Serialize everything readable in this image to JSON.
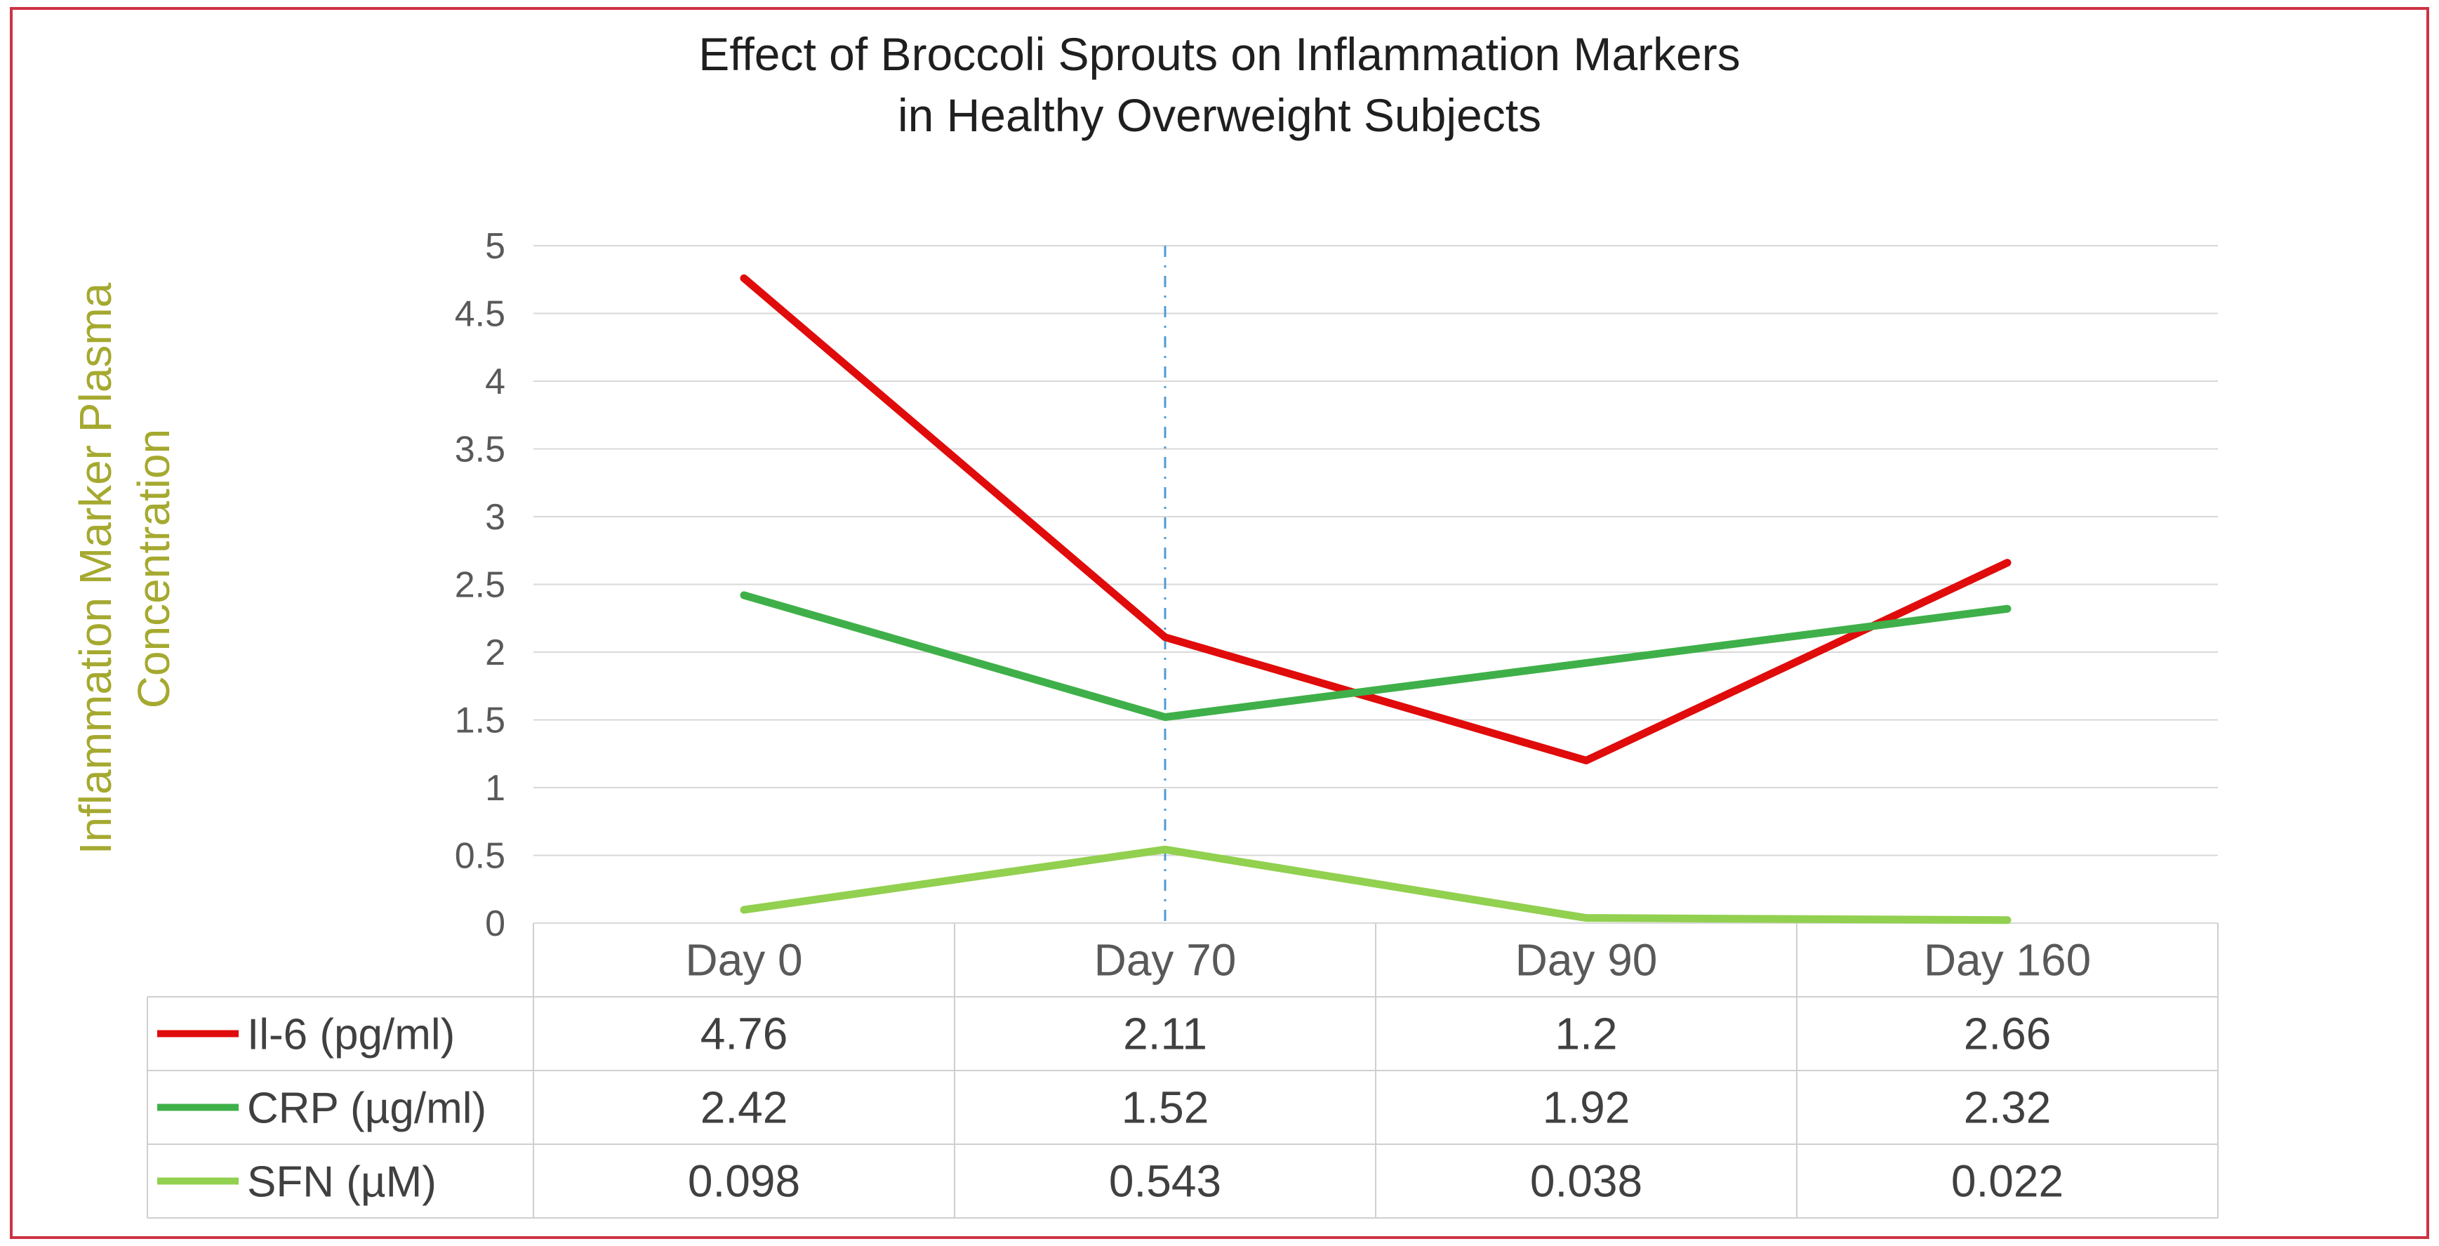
{
  "frame": {
    "border_color": "#cc3344",
    "background": "#ffffff"
  },
  "title": {
    "line1": "Effect of Broccoli Sprouts on Inflammation Markers",
    "line2": "in Healthy Overweight Subjects"
  },
  "y_axis": {
    "label_line1": "Inflammation Marker Plasma",
    "label_line2": "Concentration",
    "label_color": "#a5a92f"
  },
  "chart_data": {
    "type": "line",
    "title": "Effect of Broccoli Sprouts on Inflammation Markers in Healthy Overweight Subjects",
    "ylabel": "Inflammation Marker Plasma Concentration",
    "xlabel": "",
    "categories": [
      "Day 0",
      "Day 70",
      "Day 90",
      "Day 160"
    ],
    "series": [
      {
        "name": "Il-6 (pg/ml)",
        "color": "#e00b0b",
        "values": [
          4.76,
          2.11,
          1.2,
          2.66
        ]
      },
      {
        "name": "CRP (µg/ml)",
        "color": "#3fb049",
        "values": [
          2.42,
          1.52,
          1.92,
          2.32
        ]
      },
      {
        "name": "SFN (µM)",
        "color": "#92d050",
        "values": [
          0.098,
          0.543,
          0.038,
          0.022
        ]
      }
    ],
    "ylim": [
      0,
      5
    ],
    "ytick_step": 0.5,
    "grid": true,
    "gridline_color": "#d8d8d8",
    "table_border_color": "#cfcfcf",
    "tick_label_color": "#595959",
    "table_text_color": "#404040",
    "legend_position": "data-table-left",
    "annotation_vline": {
      "category": "Day 70",
      "color": "#4f9bd5",
      "style": "dash-dot"
    }
  }
}
